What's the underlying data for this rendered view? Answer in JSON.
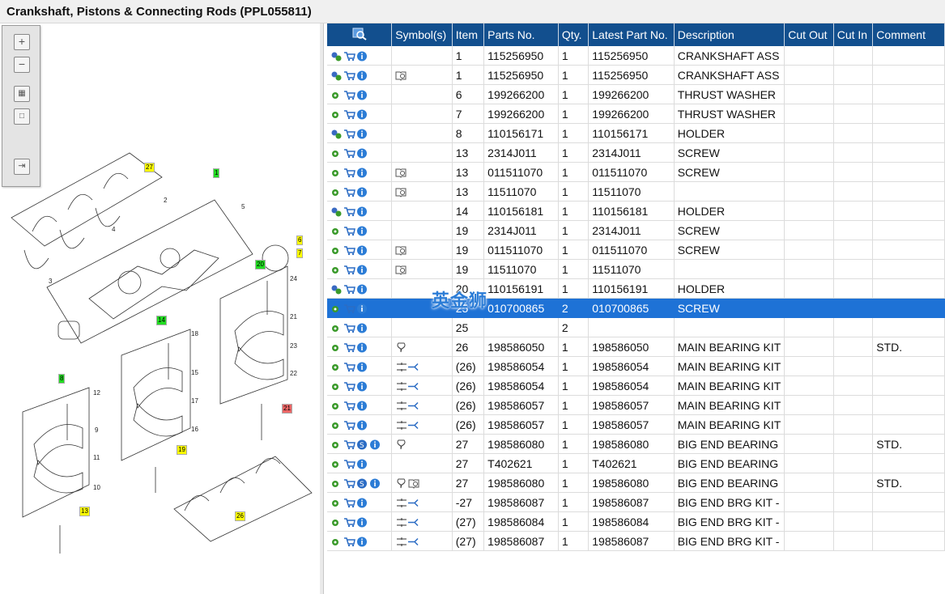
{
  "window": {
    "title": "Crankshaft, Pistons & Connecting Rods (PPL055811)"
  },
  "toolbox": {
    "buttons": [
      "zoom-in",
      "zoom-out",
      "fit",
      "actual-size",
      "export"
    ]
  },
  "diagram": {
    "labels": [
      "27",
      "2",
      "3",
      "4",
      "5",
      "6",
      "7",
      "1",
      "20",
      "24",
      "21",
      "23",
      "22",
      "21",
      "14",
      "18",
      "15",
      "17",
      "16",
      "19",
      "8",
      "12",
      "9",
      "11",
      "10",
      "13",
      "26"
    ]
  },
  "table": {
    "headers": [
      "",
      "Symbol(s)",
      "Item",
      "Parts No.",
      "Qty.",
      "Latest Part No.",
      "Description",
      "Cut Out",
      "Cut In",
      "Comment"
    ],
    "rows": [
      {
        "icons": "gear2",
        "sym": "",
        "item": "1",
        "part": "115256950",
        "qty": "1",
        "latest": "115256950",
        "desc": "CRANKSHAFT ASS",
        "co": "",
        "ci": "",
        "comment": ""
      },
      {
        "icons": "gear2",
        "sym": "book",
        "item": "1",
        "part": "115256950",
        "qty": "1",
        "latest": "115256950",
        "desc": "CRANKSHAFT ASS",
        "co": "",
        "ci": "",
        "comment": ""
      },
      {
        "icons": "gear",
        "sym": "",
        "item": "6",
        "part": "199266200",
        "qty": "1",
        "latest": "199266200",
        "desc": "THRUST WASHER",
        "co": "",
        "ci": "",
        "comment": ""
      },
      {
        "icons": "gear",
        "sym": "",
        "item": "7",
        "part": "199266200",
        "qty": "1",
        "latest": "199266200",
        "desc": "THRUST WASHER",
        "co": "",
        "ci": "",
        "comment": ""
      },
      {
        "icons": "gear2",
        "sym": "",
        "item": "8",
        "part": "110156171",
        "qty": "1",
        "latest": "110156171",
        "desc": "HOLDER",
        "co": "",
        "ci": "",
        "comment": ""
      },
      {
        "icons": "gear",
        "sym": "",
        "item": "13",
        "part": "2314J011",
        "qty": "1",
        "latest": "2314J011",
        "desc": "SCREW",
        "co": "",
        "ci": "",
        "comment": ""
      },
      {
        "icons": "gear",
        "sym": "book",
        "item": "13",
        "part": "011511070",
        "qty": "1",
        "latest": "011511070",
        "desc": "SCREW",
        "co": "",
        "ci": "",
        "comment": ""
      },
      {
        "icons": "gear",
        "sym": "book",
        "item": "13",
        "part": "11511070",
        "qty": "1",
        "latest": "11511070",
        "desc": "",
        "co": "",
        "ci": "",
        "comment": ""
      },
      {
        "icons": "gear2",
        "sym": "",
        "item": "14",
        "part": "110156181",
        "qty": "1",
        "latest": "110156181",
        "desc": "HOLDER",
        "co": "",
        "ci": "",
        "comment": ""
      },
      {
        "icons": "gear",
        "sym": "",
        "item": "19",
        "part": "2314J011",
        "qty": "1",
        "latest": "2314J011",
        "desc": "SCREW",
        "co": "",
        "ci": "",
        "comment": ""
      },
      {
        "icons": "gear",
        "sym": "book",
        "item": "19",
        "part": "011511070",
        "qty": "1",
        "latest": "011511070",
        "desc": "SCREW",
        "co": "",
        "ci": "",
        "comment": ""
      },
      {
        "icons": "gear",
        "sym": "book",
        "item": "19",
        "part": "11511070",
        "qty": "1",
        "latest": "11511070",
        "desc": "",
        "co": "",
        "ci": "",
        "comment": ""
      },
      {
        "icons": "gear2",
        "sym": "",
        "item": "20",
        "part": "110156191",
        "qty": "1",
        "latest": "110156191",
        "desc": "HOLDER",
        "co": "",
        "ci": "",
        "comment": ""
      },
      {
        "icons": "gear",
        "sym": "",
        "item": "25",
        "part": "010700865",
        "qty": "2",
        "latest": "010700865",
        "desc": "SCREW",
        "co": "",
        "ci": "",
        "comment": "",
        "selected": true
      },
      {
        "icons": "gear",
        "sym": "",
        "item": "25",
        "part": "",
        "qty": "2",
        "latest": "",
        "desc": "",
        "co": "",
        "ci": "",
        "comment": ""
      },
      {
        "icons": "gear",
        "sym": "pin",
        "item": "26",
        "part": "198586050",
        "qty": "1",
        "latest": "198586050",
        "desc": "MAIN BEARING KIT",
        "co": "",
        "ci": "",
        "comment": "STD."
      },
      {
        "icons": "gear",
        "sym": "split",
        "item": "(26)",
        "part": "198586054",
        "qty": "1",
        "latest": "198586054",
        "desc": "MAIN BEARING KIT",
        "co": "",
        "ci": "",
        "comment": ""
      },
      {
        "icons": "gear",
        "sym": "split",
        "item": "(26)",
        "part": "198586054",
        "qty": "1",
        "latest": "198586054",
        "desc": "MAIN BEARING KIT",
        "co": "",
        "ci": "",
        "comment": ""
      },
      {
        "icons": "gear",
        "sym": "split",
        "item": "(26)",
        "part": "198586057",
        "qty": "1",
        "latest": "198586057",
        "desc": "MAIN BEARING KIT",
        "co": "",
        "ci": "",
        "comment": ""
      },
      {
        "icons": "gear",
        "sym": "split",
        "item": "(26)",
        "part": "198586057",
        "qty": "1",
        "latest": "198586057",
        "desc": "MAIN BEARING KIT",
        "co": "",
        "ci": "",
        "comment": ""
      },
      {
        "icons": "gearS",
        "sym": "pin",
        "item": "27",
        "part": "198586080",
        "qty": "1",
        "latest": "198586080",
        "desc": "BIG END BEARING",
        "co": "",
        "ci": "",
        "comment": "STD."
      },
      {
        "icons": "gear",
        "sym": "",
        "item": "27",
        "part": "T402621",
        "qty": "1",
        "latest": "T402621",
        "desc": "BIG END BEARING",
        "co": "",
        "ci": "",
        "comment": ""
      },
      {
        "icons": "gearS",
        "sym": "pinbook",
        "item": "27",
        "part": "198586080",
        "qty": "1",
        "latest": "198586080",
        "desc": "BIG END BEARING",
        "co": "",
        "ci": "",
        "comment": "STD."
      },
      {
        "icons": "gear",
        "sym": "split",
        "item": "-27",
        "part": "198586087",
        "qty": "1",
        "latest": "198586087",
        "desc": "BIG END BRG KIT -",
        "co": "",
        "ci": "",
        "comment": ""
      },
      {
        "icons": "gear",
        "sym": "split",
        "item": "(27)",
        "part": "198586084",
        "qty": "1",
        "latest": "198586084",
        "desc": "BIG END BRG KIT -",
        "co": "",
        "ci": "",
        "comment": ""
      },
      {
        "icons": "gear",
        "sym": "split",
        "item": "(27)",
        "part": "198586087",
        "qty": "1",
        "latest": "198586087",
        "desc": "BIG END BRG KIT -",
        "co": "",
        "ci": "",
        "comment": ""
      }
    ]
  },
  "watermark": "英金狮"
}
